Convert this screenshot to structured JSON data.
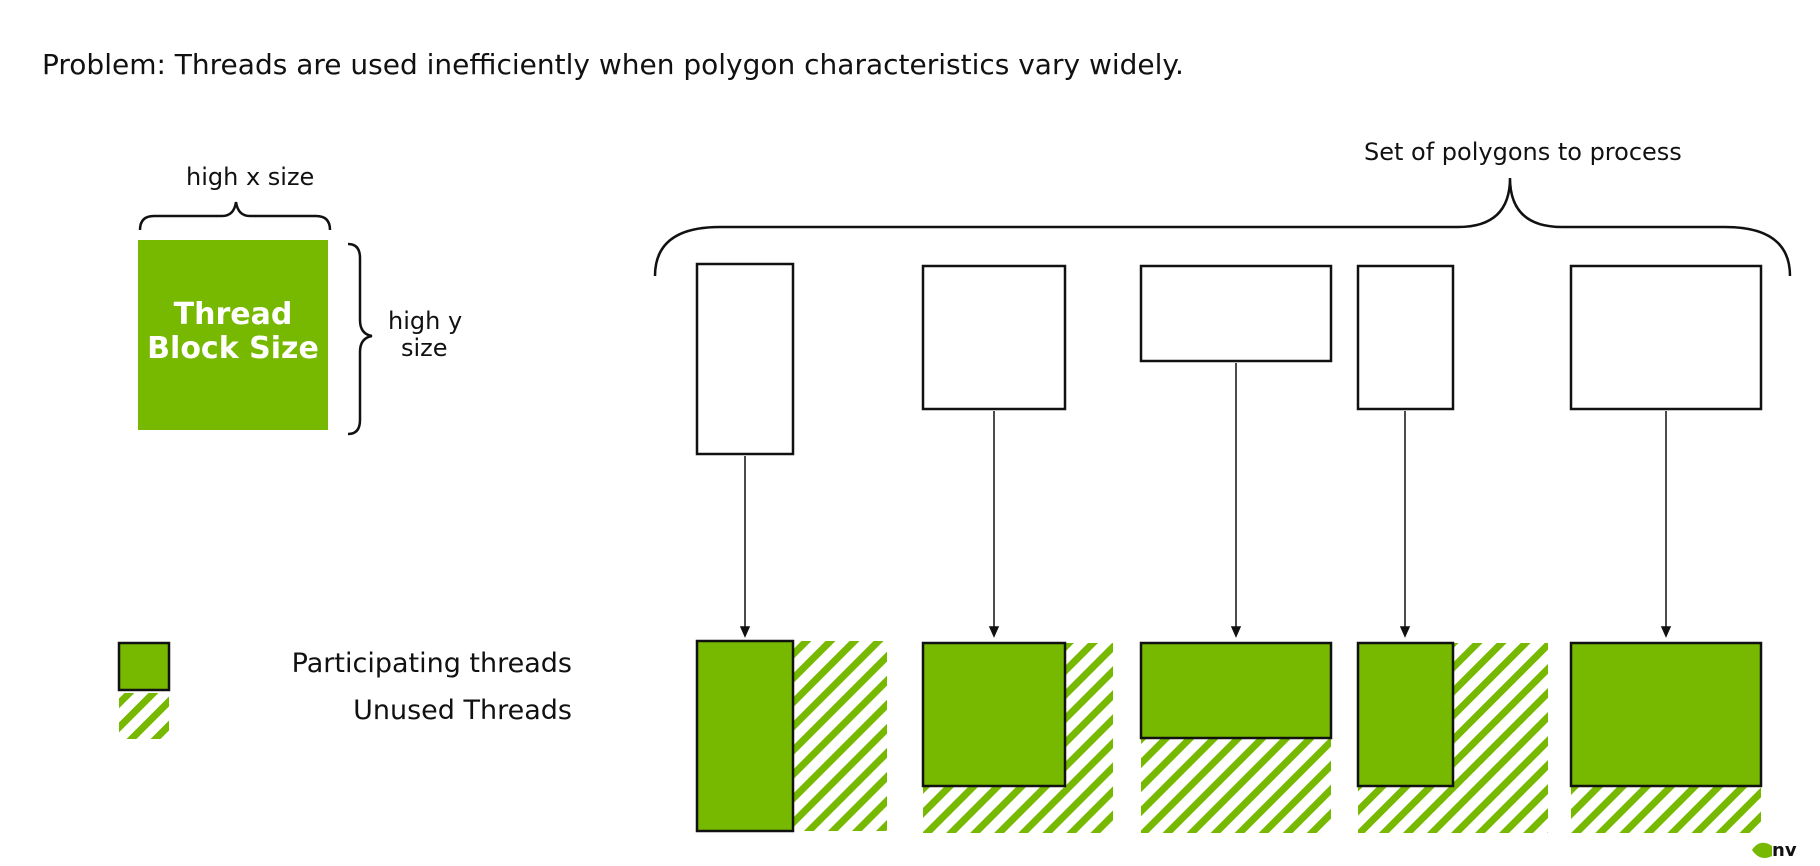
{
  "title": "Problem: Threads are used inefficiently when polygon characteristics vary widely.",
  "thread_block": {
    "x_label": "high x size",
    "y_label_line1": "high y",
    "y_label_line2": "size",
    "label_line1": "Thread",
    "label_line2": "Block Size"
  },
  "set_label": "Set of polygons to process",
  "legend": {
    "participating": "Participating threads",
    "unused": "Unused Threads"
  },
  "logo_text": "nv",
  "colors": {
    "green": "#76b900",
    "outline": "#111111"
  },
  "icons": [
    "nvidia-logo-icon"
  ]
}
